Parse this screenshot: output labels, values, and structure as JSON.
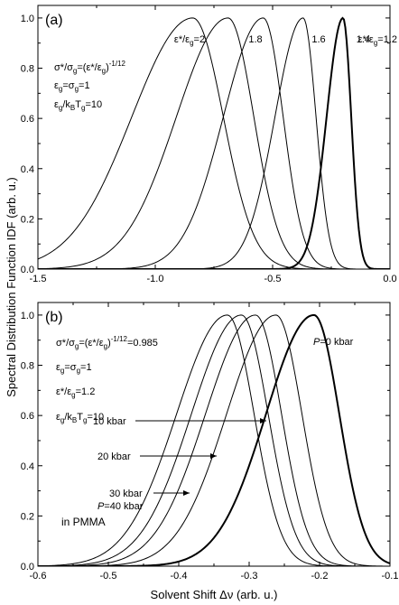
{
  "chart_data": [
    {
      "panel": "(a)",
      "type": "line",
      "xlim": [
        -1.5,
        0.0
      ],
      "ylim": [
        0.0,
        1.05
      ],
      "x_ticks": [
        "-1.5",
        "-1.0",
        "-0.5",
        "0.0"
      ],
      "y_ticks": [
        "0.0",
        "0.2",
        "0.4",
        "0.6",
        "0.8",
        "1.0"
      ],
      "x_tick_values": [
        -1.5,
        -1.0,
        -0.5,
        0.0
      ],
      "y_tick_values": [
        0,
        0.2,
        0.4,
        0.6,
        0.8,
        1.0
      ],
      "parameter_lines": [
        "σ*/σg=(ε*/εg)-1/12",
        "εg=σg=1",
        "εg/kBTg=10"
      ],
      "series": [
        {
          "label": "ε*/εg=2",
          "peak_x": -0.84,
          "left_width": 0.26,
          "right_width": 0.13,
          "bold": false
        },
        {
          "label": "1.8",
          "peak_x": -0.69,
          "left_width": 0.22,
          "right_width": 0.11,
          "bold": false
        },
        {
          "label": "1.6",
          "peak_x": -0.54,
          "left_width": 0.17,
          "right_width": 0.085,
          "bold": false
        },
        {
          "label": "1.4",
          "peak_x": -0.37,
          "left_width": 0.12,
          "right_width": 0.055,
          "bold": false
        },
        {
          "label": "ε*/εg=1.2",
          "peak_x": -0.2,
          "left_width": 0.07,
          "right_width": 0.035,
          "bold": true
        }
      ]
    },
    {
      "panel": "(b)",
      "type": "line",
      "xlim": [
        -0.6,
        -0.1
      ],
      "ylim": [
        0.0,
        1.05
      ],
      "x_ticks": [
        "-0.6",
        "-0.5",
        "-0.4",
        "-0.3",
        "-0.2",
        "-0.1"
      ],
      "y_ticks": [
        "0.0",
        "0.2",
        "0.4",
        "0.6",
        "0.8",
        "1.0"
      ],
      "x_tick_values": [
        -0.6,
        -0.5,
        -0.4,
        -0.3,
        -0.2,
        -0.1
      ],
      "y_tick_values": [
        0,
        0.2,
        0.4,
        0.6,
        0.8,
        1.0
      ],
      "parameter_lines": [
        "σ*/σg=(ε*/εg)-1/12=0.985",
        "εg=σg=1",
        "ε*/εg=1.2",
        "εg/kBTg=10"
      ],
      "medium_label": "in PMMA",
      "series": [
        {
          "label": "P=0 kbar",
          "peak_x": -0.208,
          "left_width": 0.068,
          "right_width": 0.036,
          "bold": true
        },
        {
          "label": "10 kbar",
          "peak_x": -0.262,
          "left_width": 0.07,
          "right_width": 0.037,
          "bold": false
        },
        {
          "label": "20 kbar",
          "peak_x": -0.291,
          "left_width": 0.071,
          "right_width": 0.037,
          "bold": false
        },
        {
          "label": "30 kbar",
          "peak_x": -0.311,
          "left_width": 0.071,
          "right_width": 0.038,
          "bold": false
        },
        {
          "label": "P=40 kbar",
          "peak_x": -0.331,
          "left_width": 0.072,
          "right_width": 0.038,
          "bold": false
        }
      ]
    }
  ],
  "ylabel": "Spectral Distribution Function IDF (arb. u.)",
  "xlabel": "Solvent Shift Δν (arb. u.)"
}
